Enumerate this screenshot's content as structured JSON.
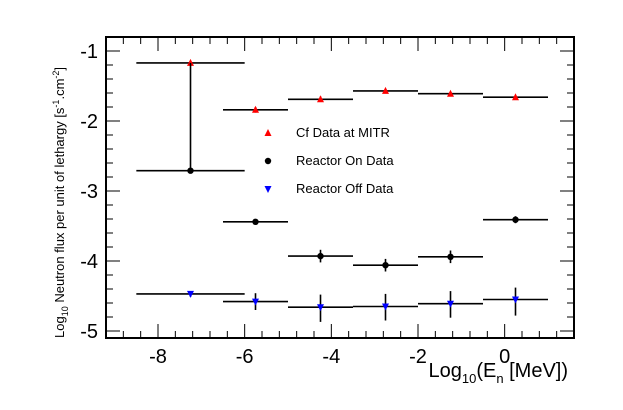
{
  "chart_data": {
    "type": "scatter",
    "title": "",
    "xlabel": {
      "prefix": "Log",
      "sub": "10",
      "middle": "(E",
      "sub2": "n",
      "suffix": " [MeV])"
    },
    "ylabel": {
      "prefix": "Log",
      "sub": "10",
      "middle": " Neutron flux per unit of lethargy [s",
      "sup1": "-1",
      "mid2": ".cm",
      "sup2": "-2",
      "suffix": "]"
    },
    "xlim": [
      -9.2,
      1.6
    ],
    "ylim": [
      -5.1,
      -0.8
    ],
    "xticks": [
      -8,
      -6,
      -4,
      -2,
      0
    ],
    "yticks": [
      -5,
      -4,
      -3,
      -2,
      -1
    ],
    "legend_position": "center",
    "series": [
      {
        "name": "Cf Data at MITR",
        "marker": "triangle-up",
        "color": "#ff0000",
        "points": [
          {
            "x": -7.25,
            "xerr": 1.25,
            "y": -1.17,
            "ylo": -1.17,
            "yhi": -1.17
          },
          {
            "x": -5.75,
            "xerr": 0.75,
            "y": -1.84,
            "ylo": -1.88,
            "yhi": -1.8
          },
          {
            "x": -4.25,
            "xerr": 0.75,
            "y": -1.69,
            "ylo": -1.72,
            "yhi": -1.65
          },
          {
            "x": -2.75,
            "xerr": 0.75,
            "y": -1.57,
            "ylo": -1.59,
            "yhi": -1.55
          },
          {
            "x": -1.25,
            "xerr": 0.75,
            "y": -1.61,
            "ylo": -1.63,
            "yhi": -1.58
          },
          {
            "x": 0.25,
            "xerr": 0.75,
            "y": -1.66,
            "ylo": -1.69,
            "yhi": -1.63
          }
        ]
      },
      {
        "name": "Reactor On Data",
        "marker": "circle",
        "color": "#000000",
        "points": [
          {
            "x": -7.25,
            "xerr": 1.25,
            "y": -2.71,
            "ylo": -2.71,
            "yhi": -1.17
          },
          {
            "x": -5.75,
            "xerr": 0.75,
            "y": -3.44,
            "ylo": -3.45,
            "yhi": -3.43
          },
          {
            "x": -4.25,
            "xerr": 0.75,
            "y": -3.93,
            "ylo": -4.02,
            "yhi": -3.84
          },
          {
            "x": -2.75,
            "xerr": 0.75,
            "y": -4.06,
            "ylo": -4.15,
            "yhi": -3.97
          },
          {
            "x": -1.25,
            "xerr": 0.75,
            "y": -3.94,
            "ylo": -4.03,
            "yhi": -3.85
          },
          {
            "x": 0.25,
            "xerr": 0.75,
            "y": -3.41,
            "ylo": -3.46,
            "yhi": -3.36
          }
        ]
      },
      {
        "name": "Reactor Off Data",
        "marker": "triangle-down",
        "color": "#0000ff",
        "points": [
          {
            "x": -7.25,
            "xerr": 1.25,
            "y": -4.47,
            "ylo": -4.51,
            "yhi": -4.43
          },
          {
            "x": -5.75,
            "xerr": 0.75,
            "y": -4.58,
            "ylo": -4.7,
            "yhi": -4.46
          },
          {
            "x": -4.25,
            "xerr": 0.75,
            "y": -4.66,
            "ylo": -4.87,
            "yhi": -4.48
          },
          {
            "x": -2.75,
            "xerr": 0.75,
            "y": -4.65,
            "ylo": -4.85,
            "yhi": -4.47
          },
          {
            "x": -1.25,
            "xerr": 0.75,
            "y": -4.61,
            "ylo": -4.81,
            "yhi": -4.43
          },
          {
            "x": 0.25,
            "xerr": 0.75,
            "y": -4.55,
            "ylo": -4.78,
            "yhi": -4.38
          }
        ]
      }
    ]
  }
}
